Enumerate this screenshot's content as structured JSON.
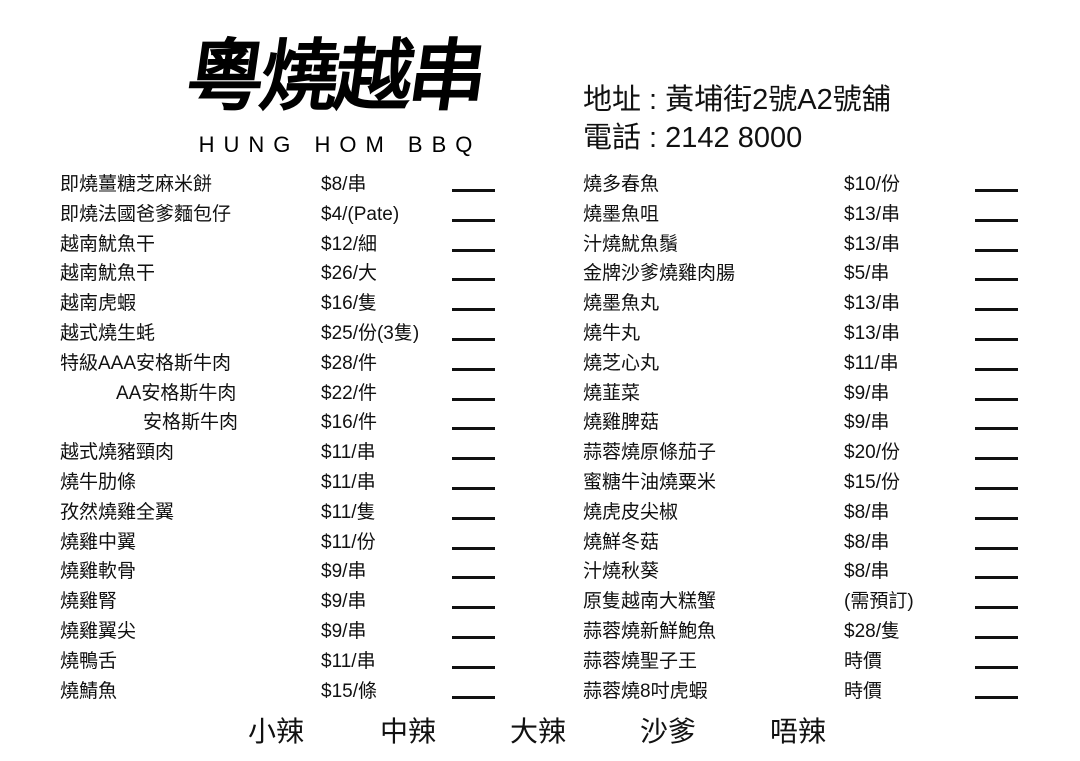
{
  "logo": {
    "chinese": "粵燒越串",
    "english": "HUNG HOM BBQ"
  },
  "info": {
    "address": "地址 : 黃埔街2號A2號舖",
    "phone": "電話 : 2142 8000"
  },
  "left_items": [
    {
      "name": "即燒薑糖芝麻米餅",
      "price": "$8/串"
    },
    {
      "name": "即燒法國爸爹麵包仔",
      "price": "$4/(Pate)"
    },
    {
      "name": "越南魷魚干",
      "price": "$12/細"
    },
    {
      "name": "越南魷魚干",
      "price": "$26/大"
    },
    {
      "name": "越南虎蝦",
      "price": "$16/隻"
    },
    {
      "name": "越式燒生蚝",
      "price": "$25/份(3隻)"
    },
    {
      "name": "特級AAA安格斯牛肉",
      "price": "$28/件"
    },
    {
      "name": "AA安格斯牛肉",
      "price": "$22/件",
      "indent": 1
    },
    {
      "name": "安格斯牛肉",
      "price": "$16/件",
      "indent": 2
    },
    {
      "name": "越式燒豬頸肉",
      "price": "$11/串"
    },
    {
      "name": "燒牛肋條",
      "price": "$11/串"
    },
    {
      "name": "孜然燒雞全翼",
      "price": "$11/隻"
    },
    {
      "name": "燒雞中翼",
      "price": "$11/份"
    },
    {
      "name": "燒雞軟骨",
      "price": "$9/串"
    },
    {
      "name": "燒雞腎",
      "price": "$9/串"
    },
    {
      "name": "燒雞翼尖",
      "price": "$9/串"
    },
    {
      "name": "燒鴨舌",
      "price": "$11/串"
    },
    {
      "name": "燒鯖魚",
      "price": "$15/條"
    }
  ],
  "right_items": [
    {
      "name": "燒多春魚",
      "price": "$10/份"
    },
    {
      "name": "燒墨魚咀",
      "price": "$13/串"
    },
    {
      "name": "汁燒魷魚鬚",
      "price": "$13/串"
    },
    {
      "name": "金牌沙爹燒雞肉腸",
      "price": "$5/串"
    },
    {
      "name": "燒墨魚丸",
      "price": "$13/串"
    },
    {
      "name": "燒牛丸",
      "price": "$13/串"
    },
    {
      "name": "燒芝心丸",
      "price": "$11/串"
    },
    {
      "name": "燒韮菜",
      "price": "$9/串"
    },
    {
      "name": "燒雞脾菇",
      "price": "$9/串"
    },
    {
      "name": "蒜蓉燒原條茄子",
      "price": "$20/份"
    },
    {
      "name": "蜜糖牛油燒粟米",
      "price": "$15/份"
    },
    {
      "name": "燒虎皮尖椒",
      "price": "$8/串"
    },
    {
      "name": "燒鮮冬菇",
      "price": "$8/串"
    },
    {
      "name": "汁燒秋葵",
      "price": "$8/串"
    },
    {
      "name": "原隻越南大糕蟹",
      "price": "(需預訂)"
    },
    {
      "name": "蒜蓉燒新鮮鮑魚",
      "price": "$28/隻"
    },
    {
      "name": "蒜蓉燒聖子王",
      "price": "時價"
    },
    {
      "name": "蒜蓉燒8吋虎蝦",
      "price": "時價"
    }
  ],
  "spice_levels": [
    "小辣",
    "中辣",
    "大辣",
    "沙爹",
    "唔辣"
  ]
}
